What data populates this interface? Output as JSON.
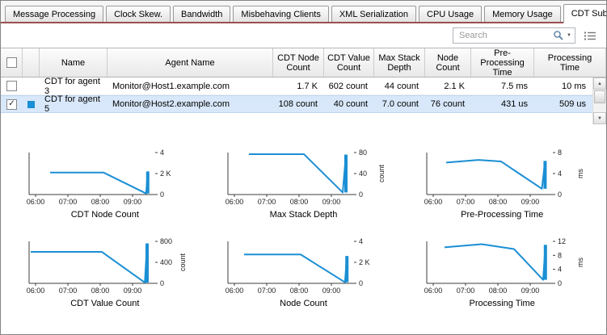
{
  "tabs": {
    "items": [
      {
        "label": "Message Processing",
        "active": false
      },
      {
        "label": "Clock Skew.",
        "active": false
      },
      {
        "label": "Bandwidth",
        "active": false
      },
      {
        "label": "Misbehaving Clients",
        "active": false
      },
      {
        "label": "XML Serialization",
        "active": false
      },
      {
        "label": "CPU Usage",
        "active": false
      },
      {
        "label": "Memory Usage",
        "active": false
      },
      {
        "label": "CDT Submission",
        "active": true
      }
    ]
  },
  "toolbar": {
    "search_placeholder": "Search"
  },
  "icons": {
    "scroll_up": "▲",
    "scroll_down": "▼",
    "dropdown_caret": "▼"
  },
  "table": {
    "select_all": false,
    "columns": [
      {
        "label": ""
      },
      {
        "label": ""
      },
      {
        "label": "Name"
      },
      {
        "label": "Agent Name"
      },
      {
        "label": "CDT Node\nCount"
      },
      {
        "label": "CDT Value\nCount"
      },
      {
        "label": "Max Stack\nDepth"
      },
      {
        "label": "Node\nCount"
      },
      {
        "label": "Pre-Processing\nTime"
      },
      {
        "label": "Processing\nTime"
      }
    ],
    "rows": [
      {
        "checked": false,
        "selected": false,
        "swatch": null,
        "name": "CDT for agent 3",
        "agent": "Monitor@Host1.example.com",
        "cdt_node_count": "1.7 K",
        "cdt_value_count": "602 count",
        "max_stack_depth": "44 count",
        "node_count": "2.1 K",
        "pre_processing_time": "7.5 ms",
        "processing_time": "10 ms"
      },
      {
        "checked": true,
        "selected": true,
        "swatch": "#1b8fd4",
        "name": "CDT for agent 5",
        "agent": "Monitor@Host2.example.com",
        "cdt_node_count": "108 count",
        "cdt_value_count": "40 count",
        "max_stack_depth": "7.0 count",
        "node_count": "76 count",
        "pre_processing_time": "431 us",
        "processing_time": "509 us"
      }
    ]
  },
  "chart_style": {
    "line_color": "#1b8fd4",
    "axis_color": "#3c3c3c",
    "label_color": "#222222"
  },
  "chart_data": [
    {
      "type": "line",
      "title": "CDT Node Count",
      "unit": "",
      "xlim": [
        5.8,
        9.7
      ],
      "ylim": [
        0,
        4
      ],
      "xticks": [
        6,
        7,
        8,
        9
      ],
      "xtick_labels": [
        "06:00",
        "07:00",
        "08:00",
        "09:00"
      ],
      "yticks": [
        0,
        2,
        4
      ],
      "ytick_labels": [
        "0",
        "2 K",
        "4"
      ],
      "points": [
        [
          6.45,
          2.1
        ],
        [
          8.1,
          2.1
        ],
        [
          9.42,
          0.1
        ],
        [
          9.47,
          2.2
        ]
      ]
    },
    {
      "type": "line",
      "title": "Max Stack Depth",
      "unit": "count",
      "xlim": [
        5.8,
        9.7
      ],
      "ylim": [
        0,
        80
      ],
      "xticks": [
        6,
        7,
        8,
        9
      ],
      "xtick_labels": [
        "06:00",
        "07:00",
        "08:00",
        "09:00"
      ],
      "yticks": [
        0,
        40,
        80
      ],
      "ytick_labels": [
        "0",
        "40",
        "80"
      ],
      "points": [
        [
          6.45,
          77
        ],
        [
          8.15,
          77
        ],
        [
          9.35,
          4
        ],
        [
          9.45,
          76
        ]
      ]
    },
    {
      "type": "line",
      "title": "Pre-Processing Time",
      "unit": "ms",
      "xlim": [
        5.8,
        9.7
      ],
      "ylim": [
        0,
        8
      ],
      "xticks": [
        6,
        7,
        8,
        9
      ],
      "xtick_labels": [
        "06:00",
        "07:00",
        "08:00",
        "09:00"
      ],
      "yticks": [
        0,
        4,
        8
      ],
      "ytick_labels": [
        "0",
        "4",
        "8"
      ],
      "points": [
        [
          6.4,
          6.1
        ],
        [
          7.4,
          6.6
        ],
        [
          8.1,
          6.3
        ],
        [
          9.36,
          1.1
        ],
        [
          9.46,
          6.4
        ]
      ]
    },
    {
      "type": "line",
      "title": "CDT Value Count",
      "unit": "count",
      "xlim": [
        5.8,
        9.7
      ],
      "ylim": [
        0,
        800
      ],
      "xticks": [
        6,
        7,
        8,
        9
      ],
      "xtick_labels": [
        "06:00",
        "07:00",
        "08:00",
        "09:00"
      ],
      "yticks": [
        0,
        400,
        800
      ],
      "ytick_labels": [
        "0",
        "400",
        "800"
      ],
      "points": [
        [
          5.85,
          600
        ],
        [
          8.05,
          600
        ],
        [
          9.38,
          15
        ],
        [
          9.45,
          760
        ]
      ]
    },
    {
      "type": "line",
      "title": "Node Count",
      "unit": "",
      "xlim": [
        5.8,
        9.7
      ],
      "ylim": [
        0,
        4
      ],
      "xticks": [
        6,
        7,
        8,
        9
      ],
      "xtick_labels": [
        "06:00",
        "07:00",
        "08:00",
        "09:00"
      ],
      "yticks": [
        0,
        2,
        4
      ],
      "ytick_labels": [
        "0",
        "2 K",
        "4"
      ],
      "points": [
        [
          6.3,
          2.75
        ],
        [
          8.05,
          2.75
        ],
        [
          9.42,
          0.1
        ],
        [
          9.48,
          2.6
        ]
      ]
    },
    {
      "type": "line",
      "title": "Processing Time",
      "unit": "ms",
      "xlim": [
        5.8,
        9.7
      ],
      "ylim": [
        0,
        12
      ],
      "xticks": [
        6,
        7,
        8,
        9
      ],
      "xtick_labels": [
        "06:00",
        "07:00",
        "08:00",
        "09:00"
      ],
      "yticks": [
        0,
        4,
        8,
        12
      ],
      "ytick_labels": [
        "0",
        "4",
        "8",
        "12"
      ],
      "points": [
        [
          6.35,
          10.3
        ],
        [
          7.5,
          11.2
        ],
        [
          8.5,
          9.8
        ],
        [
          9.4,
          1.0
        ],
        [
          9.47,
          11.0
        ]
      ]
    }
  ]
}
